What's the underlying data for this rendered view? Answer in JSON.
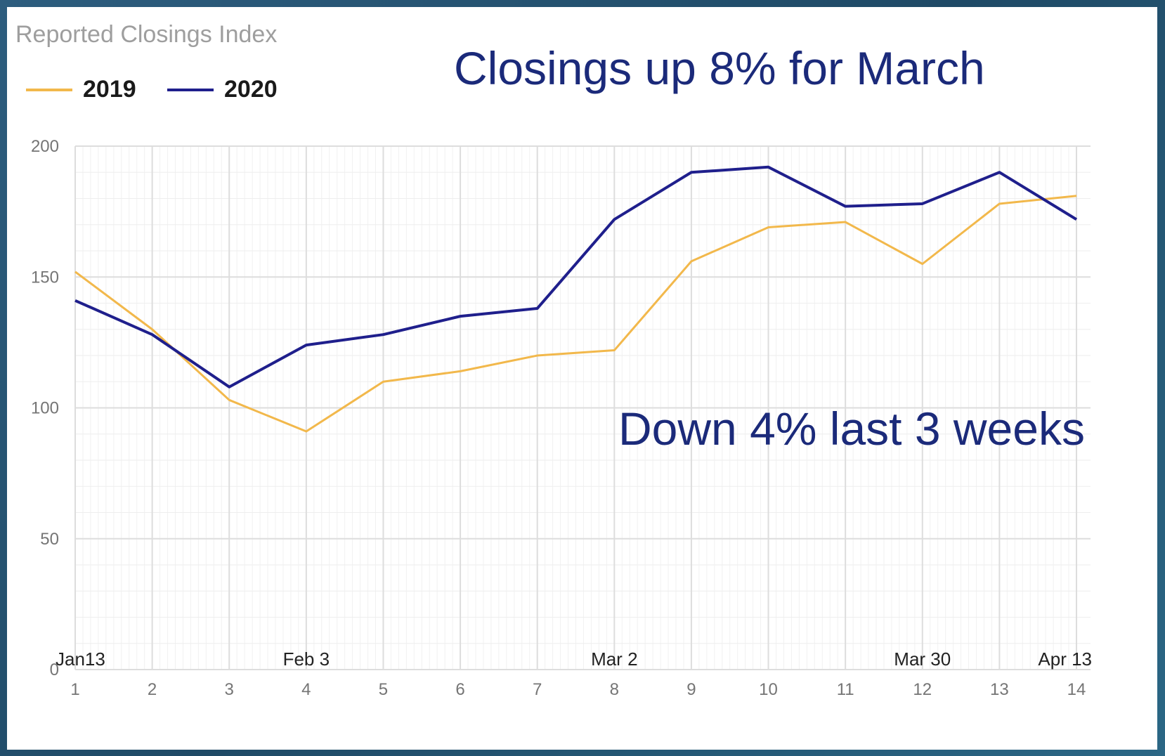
{
  "chart_data": {
    "type": "line",
    "title": "Reported Closings Index",
    "x": [
      1,
      2,
      3,
      4,
      5,
      6,
      7,
      8,
      9,
      10,
      11,
      12,
      13,
      14
    ],
    "ylim": [
      0,
      200
    ],
    "yticks": [
      0,
      50,
      100,
      150,
      200
    ],
    "grid": true,
    "legend_position": "top-left",
    "series": [
      {
        "name": "2019",
        "color": "#f2b84b",
        "values": [
          152,
          130,
          103,
          91,
          110,
          114,
          120,
          122,
          156,
          169,
          171,
          155,
          178,
          181
        ]
      },
      {
        "name": "2020",
        "color": "#1f1f8c",
        "values": [
          141,
          128,
          108,
          124,
          128,
          135,
          138,
          172,
          190,
          192,
          177,
          178,
          190,
          172
        ]
      }
    ],
    "date_labels": [
      {
        "x": 1,
        "text": "Jan13"
      },
      {
        "x": 4,
        "text": "Feb 3"
      },
      {
        "x": 8,
        "text": "Mar 2"
      },
      {
        "x": 12,
        "text": "Mar 30"
      },
      {
        "x": 14,
        "text": "Apr 13"
      }
    ],
    "annotations": [
      {
        "text": "Closings up 8% for March"
      },
      {
        "text": "Down 4% last 3 weeks"
      }
    ]
  }
}
